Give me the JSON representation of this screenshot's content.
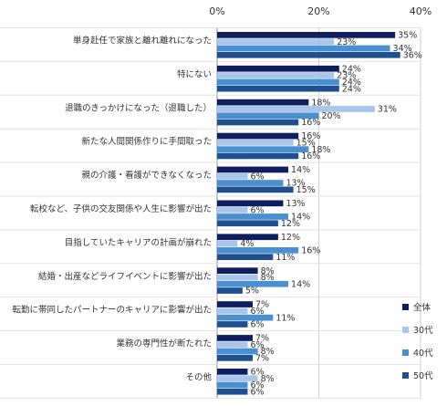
{
  "chart_data": {
    "type": "bar",
    "orientation": "horizontal",
    "categories": [
      "単身赴任で家族と離れ離れになった",
      "特にない",
      "退職のきっかけになった（退職した）",
      "新たな人間関係作りに手間取った",
      "親の介護・看護ができなくなった",
      "転校など、子供の交友関係や人生に影響が出た",
      "目指していたキャリアの計画が崩れた",
      "結婚・出産などライフイベントに影響が出た",
      "転勤に帯同したパートナーのキャリアに影響が出た",
      "業務の専門性が断たれた",
      "その他"
    ],
    "series": [
      {
        "name": "全体",
        "color": "#0f1e5e",
        "values": [
          35,
          24,
          18,
          16,
          14,
          13,
          12,
          8,
          7,
          7,
          6
        ]
      },
      {
        "name": "30代",
        "color": "#a8c6ea",
        "values": [
          23,
          23,
          31,
          15,
          6,
          6,
          4,
          8,
          6,
          6,
          8
        ]
      },
      {
        "name": "40代",
        "color": "#4a8fd0",
        "values": [
          34,
          24,
          20,
          18,
          13,
          14,
          16,
          14,
          11,
          8,
          6
        ]
      },
      {
        "name": "50代",
        "color": "#1f4f8f",
        "values": [
          36,
          24,
          16,
          16,
          15,
          12,
          11,
          5,
          6,
          7,
          6
        ]
      }
    ],
    "xlim": [
      0,
      40
    ],
    "xticks": [
      "0%",
      "20%",
      "40%"
    ],
    "value_suffix": "%",
    "grid": true,
    "legend_position": "bottom-right"
  }
}
